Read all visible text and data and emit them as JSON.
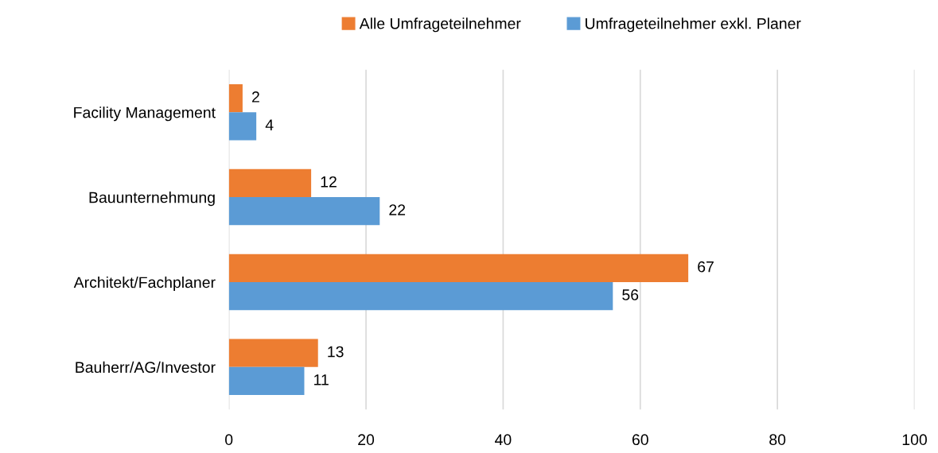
{
  "chart_data": {
    "type": "bar",
    "orientation": "horizontal",
    "categories": [
      "Facility Management",
      "Bauunternehmung",
      "Architekt/Fachplaner",
      "Bauherr/AG/Investor"
    ],
    "series": [
      {
        "name": "Alle Umfrageteilnehmer",
        "color": "#ed7d31",
        "values": [
          2,
          12,
          67,
          13
        ]
      },
      {
        "name": "Umfrageteilnehmer exkl. Planer",
        "color": "#5b9bd5",
        "values": [
          4,
          22,
          56,
          11
        ]
      }
    ],
    "xlim": [
      0,
      100
    ],
    "xticks": [
      0,
      20,
      40,
      60,
      80,
      100
    ],
    "grid": "x",
    "legend": "top",
    "data_labels": true
  }
}
